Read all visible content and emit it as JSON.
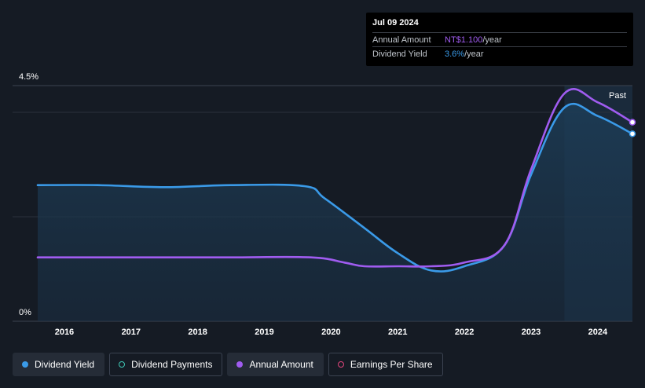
{
  "tooltip": {
    "date": "Jul 09 2024",
    "rows": [
      {
        "label": "Annual Amount",
        "value": "NT$1.100",
        "unit": "/year"
      },
      {
        "label": "Dividend Yield",
        "value": "3.6%",
        "unit": "/year"
      }
    ]
  },
  "chart_data": {
    "type": "line",
    "y_top_label": "4.5%",
    "y_bottom_label": "0%",
    "past_label": "Past",
    "ylim": [
      0,
      4.5
    ],
    "xlim": [
      2015.6,
      2024.52
    ],
    "x_ticks": [
      "2016",
      "2017",
      "2018",
      "2019",
      "2020",
      "2021",
      "2022",
      "2023",
      "2024"
    ],
    "x_tick_values": [
      2016,
      2017,
      2018,
      2019,
      2020,
      2021,
      2022,
      2023,
      2024
    ],
    "past_start": 2023.5,
    "series": [
      {
        "name": "Dividend Yield",
        "color": "#3a9ae8",
        "fill": true,
        "points": [
          [
            2015.6,
            2.6
          ],
          [
            2016.5,
            2.6
          ],
          [
            2017.5,
            2.56
          ],
          [
            2018.5,
            2.6
          ],
          [
            2019.6,
            2.58
          ],
          [
            2019.9,
            2.35
          ],
          [
            2020.5,
            1.78
          ],
          [
            2021.0,
            1.3
          ],
          [
            2021.5,
            0.97
          ],
          [
            2022.0,
            1.05
          ],
          [
            2022.6,
            1.45
          ],
          [
            2023.0,
            2.8
          ],
          [
            2023.5,
            4.08
          ],
          [
            2024.0,
            3.92
          ],
          [
            2024.52,
            3.58
          ]
        ]
      },
      {
        "name": "Annual Amount",
        "color": "#a05cf0",
        "fill": false,
        "points": [
          [
            2015.6,
            1.22
          ],
          [
            2016.5,
            1.22
          ],
          [
            2017.5,
            1.22
          ],
          [
            2018.5,
            1.22
          ],
          [
            2019.7,
            1.22
          ],
          [
            2020.2,
            1.12
          ],
          [
            2020.5,
            1.05
          ],
          [
            2021.0,
            1.05
          ],
          [
            2021.5,
            1.05
          ],
          [
            2022.0,
            1.12
          ],
          [
            2022.6,
            1.45
          ],
          [
            2023.0,
            2.9
          ],
          [
            2023.5,
            4.35
          ],
          [
            2024.0,
            4.18
          ],
          [
            2024.52,
            3.8
          ]
        ]
      }
    ]
  },
  "legend": [
    {
      "label": "Dividend Yield",
      "color": "#3a9ae8",
      "style": "filled",
      "active": true
    },
    {
      "label": "Dividend Payments",
      "color": "#3fc7b4",
      "style": "hollow",
      "active": false
    },
    {
      "label": "Annual Amount",
      "color": "#a05cf0",
      "style": "filled",
      "active": true
    },
    {
      "label": "Earnings Per Share",
      "color": "#e0457b",
      "style": "hollow",
      "active": false
    }
  ]
}
